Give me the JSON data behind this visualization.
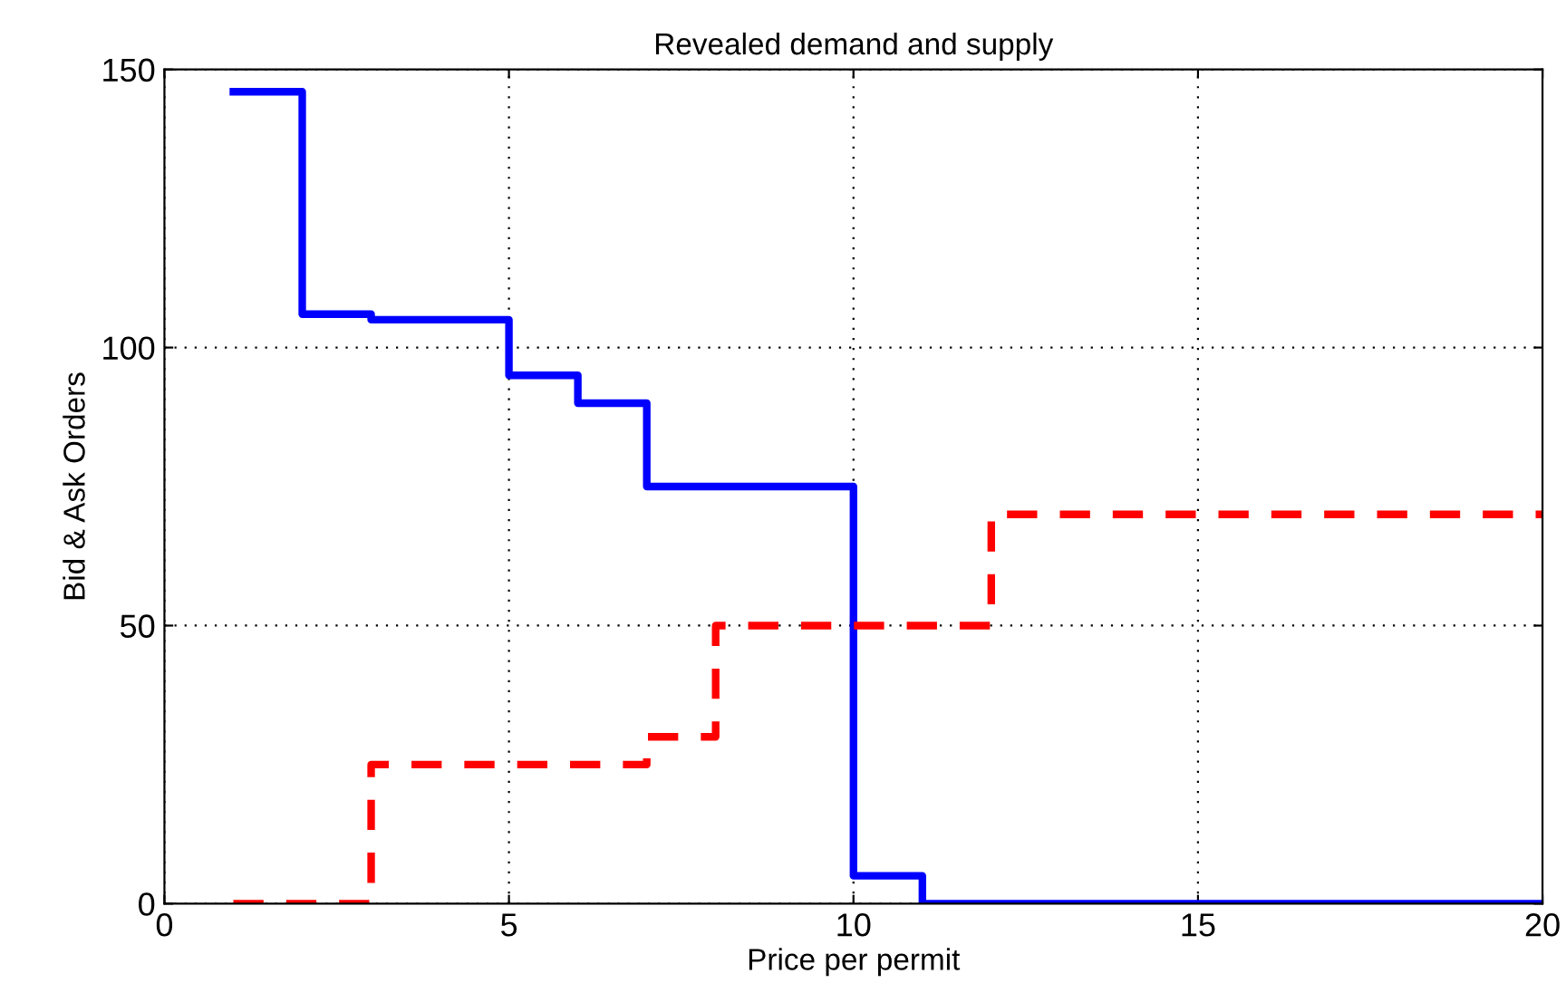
{
  "chart_data": {
    "type": "step",
    "title": "Revealed demand and supply",
    "xlabel": "Price per permit",
    "ylabel": "Bid & Ask Orders",
    "series": [
      {
        "color": "#0000ff",
        "line_style": "solid",
        "x": [
          1,
          2,
          3,
          5,
          6,
          7,
          10,
          11,
          20
        ],
        "values": [
          146,
          106,
          105,
          95,
          90,
          75,
          5,
          0,
          0
        ]
      },
      {
        "color": "#ff0000",
        "line_style": "dashed",
        "x": [
          1,
          3,
          7,
          8,
          12,
          20
        ],
        "values": [
          0,
          25,
          30,
          50,
          70,
          70
        ]
      }
    ],
    "xlim": [
      0,
      20
    ],
    "xticks": [
      0,
      5,
      10,
      15,
      20
    ],
    "ylim": [
      0,
      150
    ],
    "yticks": [
      0,
      50,
      100,
      150
    ],
    "grid": true,
    "legend": false
  }
}
